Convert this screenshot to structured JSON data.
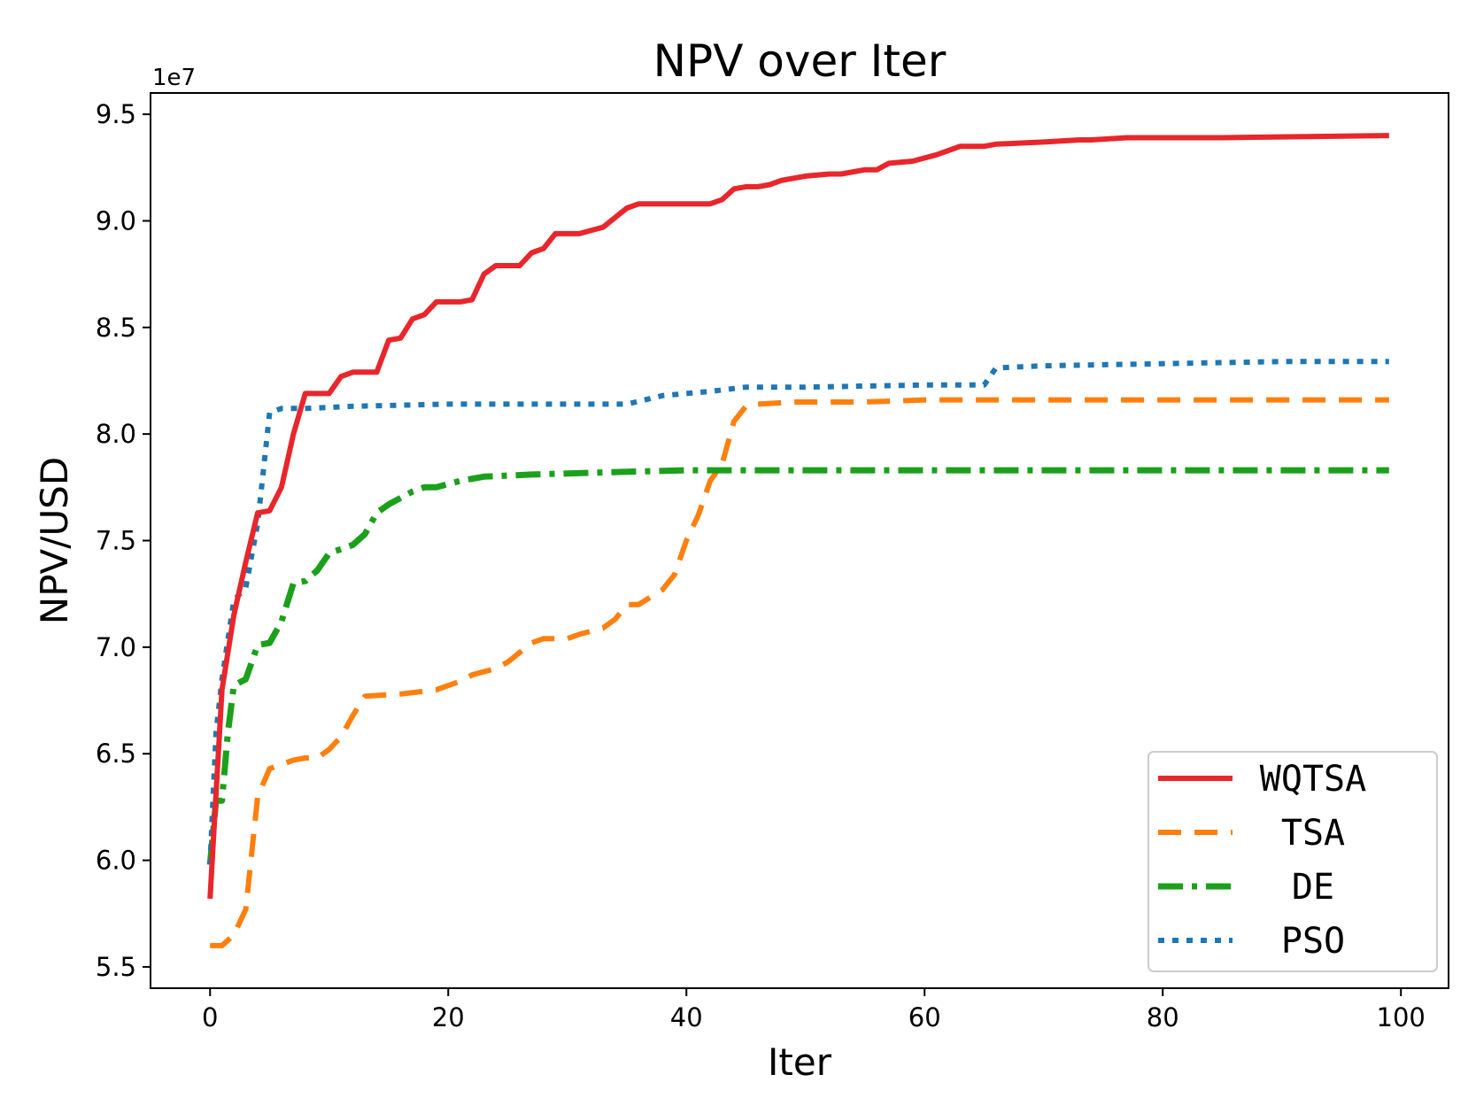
{
  "chart_data": {
    "type": "line",
    "title": "NPV over Iter",
    "xlabel": "Iter",
    "ylabel": "NPV/USD",
    "y_offset_label": "1e7",
    "xlim": [
      -5,
      104
    ],
    "ylim": [
      5.4,
      9.6
    ],
    "x_ticks": [
      0,
      20,
      40,
      60,
      80,
      100
    ],
    "x_tick_labels": [
      "0",
      "20",
      "40",
      "60",
      "80",
      "100"
    ],
    "y_ticks": [
      5.5,
      6.0,
      6.5,
      7.0,
      7.5,
      8.0,
      8.5,
      9.0,
      9.5
    ],
    "y_tick_labels": [
      "5.5",
      "6.0",
      "6.5",
      "7.0",
      "7.5",
      "8.0",
      "8.5",
      "9.0",
      "9.5"
    ],
    "grid": false,
    "legend_position": "lower-right",
    "series": [
      {
        "name": "WQTSA",
        "color": "#e8262b",
        "style": "solid",
        "points": [
          [
            0,
            5.82
          ],
          [
            1,
            6.8
          ],
          [
            2,
            7.15
          ],
          [
            3,
            7.4
          ],
          [
            4,
            7.63
          ],
          [
            5,
            7.64
          ],
          [
            6,
            7.75
          ],
          [
            7,
            8.0
          ],
          [
            8,
            8.19
          ],
          [
            10,
            8.19
          ],
          [
            11,
            8.27
          ],
          [
            12,
            8.29
          ],
          [
            14,
            8.29
          ],
          [
            15,
            8.44
          ],
          [
            16,
            8.45
          ],
          [
            17,
            8.54
          ],
          [
            18,
            8.56
          ],
          [
            19,
            8.62
          ],
          [
            21,
            8.62
          ],
          [
            22,
            8.63
          ],
          [
            23,
            8.75
          ],
          [
            24,
            8.79
          ],
          [
            26,
            8.79
          ],
          [
            27,
            8.85
          ],
          [
            28,
            8.87
          ],
          [
            29,
            8.94
          ],
          [
            31,
            8.94
          ],
          [
            33,
            8.97
          ],
          [
            35,
            9.06
          ],
          [
            36,
            9.08
          ],
          [
            38,
            9.08
          ],
          [
            42,
            9.08
          ],
          [
            43,
            9.1
          ],
          [
            44,
            9.15
          ],
          [
            45,
            9.16
          ],
          [
            46,
            9.16
          ],
          [
            47,
            9.17
          ],
          [
            48,
            9.19
          ],
          [
            50,
            9.21
          ],
          [
            52,
            9.22
          ],
          [
            53,
            9.22
          ],
          [
            55,
            9.24
          ],
          [
            56,
            9.24
          ],
          [
            57,
            9.27
          ],
          [
            59,
            9.28
          ],
          [
            61,
            9.31
          ],
          [
            62,
            9.33
          ],
          [
            63,
            9.35
          ],
          [
            65,
            9.35
          ],
          [
            66,
            9.36
          ],
          [
            70,
            9.37
          ],
          [
            73,
            9.38
          ],
          [
            74,
            9.38
          ],
          [
            77,
            9.39
          ],
          [
            85,
            9.39
          ],
          [
            99,
            9.4
          ]
        ]
      },
      {
        "name": "TSA",
        "color": "#ff7f0e",
        "style": "dashed",
        "points": [
          [
            0,
            5.6
          ],
          [
            1,
            5.6
          ],
          [
            2,
            5.65
          ],
          [
            3,
            5.77
          ],
          [
            4,
            6.3
          ],
          [
            5,
            6.43
          ],
          [
            6,
            6.45
          ],
          [
            7,
            6.47
          ],
          [
            8,
            6.48
          ],
          [
            9,
            6.48
          ],
          [
            10,
            6.52
          ],
          [
            11,
            6.58
          ],
          [
            12,
            6.68
          ],
          [
            13,
            6.77
          ],
          [
            16,
            6.78
          ],
          [
            19,
            6.8
          ],
          [
            21,
            6.84
          ],
          [
            22,
            6.87
          ],
          [
            24,
            6.9
          ],
          [
            25,
            6.93
          ],
          [
            27,
            7.02
          ],
          [
            28,
            7.04
          ],
          [
            30,
            7.04
          ],
          [
            31,
            7.06
          ],
          [
            33,
            7.09
          ],
          [
            34,
            7.13
          ],
          [
            35,
            7.2
          ],
          [
            36,
            7.2
          ],
          [
            38,
            7.27
          ],
          [
            39,
            7.34
          ],
          [
            40,
            7.5
          ],
          [
            41,
            7.62
          ],
          [
            42,
            7.78
          ],
          [
            43,
            7.86
          ],
          [
            44,
            8.06
          ],
          [
            45,
            8.13
          ],
          [
            46,
            8.14
          ],
          [
            49,
            8.15
          ],
          [
            55,
            8.15
          ],
          [
            60,
            8.16
          ],
          [
            99,
            8.16
          ]
        ]
      },
      {
        "name": "DE",
        "color": "#1ba01b",
        "style": "dashdot",
        "points": [
          [
            0,
            5.98
          ],
          [
            0.5,
            6.28
          ],
          [
            1,
            6.28
          ],
          [
            1.5,
            6.6
          ],
          [
            2,
            6.82
          ],
          [
            3,
            6.85
          ],
          [
            4,
            7.01
          ],
          [
            5,
            7.02
          ],
          [
            6,
            7.12
          ],
          [
            7,
            7.3
          ],
          [
            8,
            7.31
          ],
          [
            9,
            7.36
          ],
          [
            10,
            7.44
          ],
          [
            11,
            7.46
          ],
          [
            12,
            7.48
          ],
          [
            13,
            7.53
          ],
          [
            14,
            7.63
          ],
          [
            15,
            7.67
          ],
          [
            17,
            7.73
          ],
          [
            18,
            7.75
          ],
          [
            19,
            7.75
          ],
          [
            21,
            7.78
          ],
          [
            23,
            7.8
          ],
          [
            27,
            7.81
          ],
          [
            33,
            7.82
          ],
          [
            40,
            7.83
          ],
          [
            99,
            7.83
          ]
        ]
      },
      {
        "name": "PSO",
        "color": "#1f77b4",
        "style": "dotted",
        "points": [
          [
            0,
            5.98
          ],
          [
            0.5,
            6.6
          ],
          [
            1,
            6.85
          ],
          [
            2,
            7.22
          ],
          [
            3,
            7.28
          ],
          [
            4,
            7.58
          ],
          [
            5,
            8.1
          ],
          [
            6,
            8.12
          ],
          [
            8,
            8.12
          ],
          [
            12,
            8.13
          ],
          [
            20,
            8.14
          ],
          [
            30,
            8.14
          ],
          [
            35,
            8.14
          ],
          [
            38,
            8.18
          ],
          [
            42,
            8.2
          ],
          [
            45,
            8.22
          ],
          [
            50,
            8.22
          ],
          [
            60,
            8.23
          ],
          [
            65,
            8.23
          ],
          [
            66,
            8.31
          ],
          [
            70,
            8.32
          ],
          [
            80,
            8.33
          ],
          [
            90,
            8.34
          ],
          [
            99,
            8.34
          ]
        ]
      }
    ]
  }
}
